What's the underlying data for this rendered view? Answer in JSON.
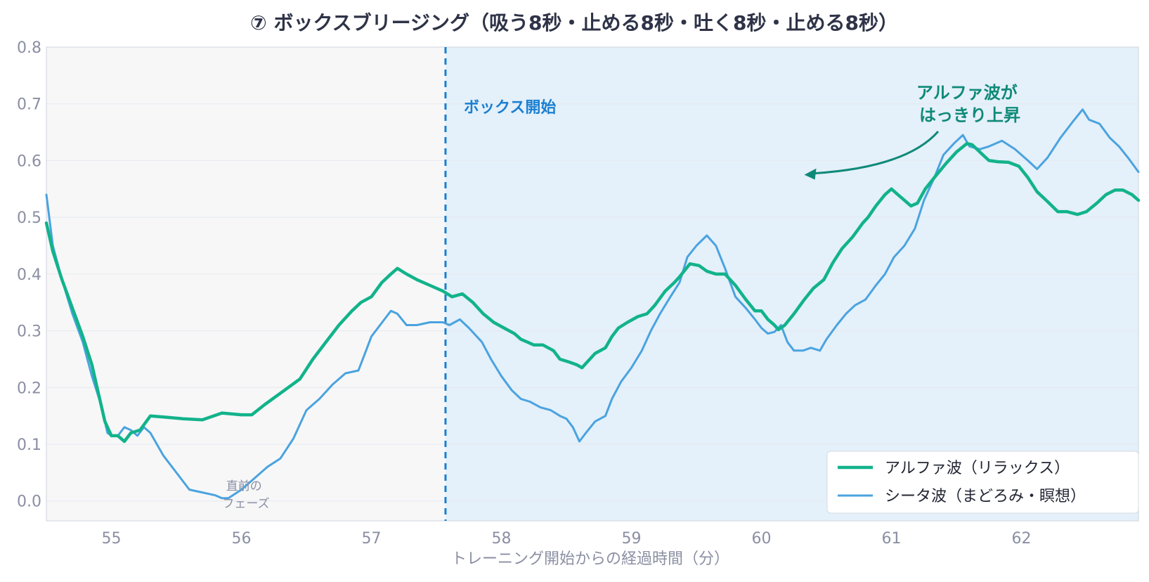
{
  "chart_data": {
    "type": "line",
    "title": "⑦ ボックスブリージング（吸う8秒・止める8秒・吐く8秒・止める8秒）",
    "xlabel": "トレーニング開始からの経過時間（分）",
    "ylabel": "",
    "xlim": [
      54.5,
      62.9
    ],
    "ylim": [
      -0.035,
      0.8
    ],
    "x_ticks": [
      "55",
      "56",
      "57",
      "58",
      "59",
      "60",
      "61",
      "62"
    ],
    "y_ticks": [
      "0.0",
      "0.1",
      "0.2",
      "0.3",
      "0.4",
      "0.5",
      "0.6",
      "0.7",
      "0.8"
    ],
    "grid": "horizontal",
    "legend_position": "bottom-right",
    "phases": [
      {
        "name": "previous",
        "x_start": 54.5,
        "x_end": 57.57,
        "color": "#f7f7f8",
        "label": "直前の\nフェーズ"
      },
      {
        "name": "box",
        "x_start": 57.57,
        "x_end": 62.9,
        "color": "#e4f0fa",
        "label": "ボックス開始"
      }
    ],
    "annotations": [
      {
        "text": "アルファ波が\nはっきり上昇",
        "color": "#0f8a78",
        "arrow_to": [
          60.33,
          0.575
        ]
      }
    ],
    "series": [
      {
        "name": "アルファ波（リラックス）",
        "color": "#12b38a",
        "width": 4.5,
        "points": [
          [
            54.5,
            0.49
          ],
          [
            54.55,
            0.44
          ],
          [
            54.62,
            0.39
          ],
          [
            54.7,
            0.34
          ],
          [
            54.78,
            0.29
          ],
          [
            54.85,
            0.24
          ],
          [
            54.9,
            0.19
          ],
          [
            54.95,
            0.14
          ],
          [
            55.0,
            0.115
          ],
          [
            55.05,
            0.115
          ],
          [
            55.1,
            0.105
          ],
          [
            55.15,
            0.12
          ],
          [
            55.22,
            0.125
          ],
          [
            55.3,
            0.15
          ],
          [
            55.4,
            0.148
          ],
          [
            55.55,
            0.145
          ],
          [
            55.7,
            0.143
          ],
          [
            55.85,
            0.155
          ],
          [
            56.0,
            0.152
          ],
          [
            56.08,
            0.152
          ],
          [
            56.18,
            0.17
          ],
          [
            56.3,
            0.19
          ],
          [
            56.45,
            0.215
          ],
          [
            56.55,
            0.25
          ],
          [
            56.65,
            0.28
          ],
          [
            56.75,
            0.31
          ],
          [
            56.85,
            0.335
          ],
          [
            56.92,
            0.35
          ],
          [
            57.0,
            0.36
          ],
          [
            57.08,
            0.385
          ],
          [
            57.15,
            0.4
          ],
          [
            57.2,
            0.41
          ],
          [
            57.27,
            0.4
          ],
          [
            57.35,
            0.39
          ],
          [
            57.45,
            0.38
          ],
          [
            57.55,
            0.37
          ],
          [
            57.62,
            0.36
          ],
          [
            57.7,
            0.365
          ],
          [
            57.78,
            0.35
          ],
          [
            57.86,
            0.33
          ],
          [
            57.94,
            0.315
          ],
          [
            58.02,
            0.305
          ],
          [
            58.1,
            0.295
          ],
          [
            58.15,
            0.285
          ],
          [
            58.2,
            0.28
          ],
          [
            58.25,
            0.275
          ],
          [
            58.32,
            0.275
          ],
          [
            58.4,
            0.265
          ],
          [
            58.45,
            0.25
          ],
          [
            58.52,
            0.245
          ],
          [
            58.58,
            0.24
          ],
          [
            58.62,
            0.235
          ],
          [
            58.66,
            0.245
          ],
          [
            58.72,
            0.26
          ],
          [
            58.8,
            0.27
          ],
          [
            58.85,
            0.29
          ],
          [
            58.9,
            0.305
          ],
          [
            58.97,
            0.315
          ],
          [
            59.05,
            0.325
          ],
          [
            59.12,
            0.33
          ],
          [
            59.18,
            0.345
          ],
          [
            59.26,
            0.37
          ],
          [
            59.33,
            0.385
          ],
          [
            59.37,
            0.395
          ],
          [
            59.45,
            0.418
          ],
          [
            59.52,
            0.415
          ],
          [
            59.58,
            0.405
          ],
          [
            59.65,
            0.4
          ],
          [
            59.72,
            0.4
          ],
          [
            59.8,
            0.38
          ],
          [
            59.88,
            0.355
          ],
          [
            59.95,
            0.335
          ],
          [
            60.0,
            0.335
          ],
          [
            60.05,
            0.32
          ],
          [
            60.1,
            0.31
          ],
          [
            60.13,
            0.302
          ],
          [
            60.18,
            0.31
          ],
          [
            60.25,
            0.33
          ],
          [
            60.33,
            0.355
          ],
          [
            60.4,
            0.375
          ],
          [
            60.48,
            0.39
          ],
          [
            60.55,
            0.42
          ],
          [
            60.62,
            0.445
          ],
          [
            60.7,
            0.465
          ],
          [
            60.78,
            0.49
          ],
          [
            60.82,
            0.5
          ],
          [
            60.88,
            0.52
          ],
          [
            60.95,
            0.54
          ],
          [
            61.0,
            0.55
          ],
          [
            61.05,
            0.54
          ],
          [
            61.1,
            0.53
          ],
          [
            61.15,
            0.52
          ],
          [
            61.2,
            0.525
          ],
          [
            61.26,
            0.55
          ],
          [
            61.33,
            0.57
          ],
          [
            61.42,
            0.595
          ],
          [
            61.5,
            0.615
          ],
          [
            61.58,
            0.63
          ],
          [
            61.62,
            0.628
          ],
          [
            61.68,
            0.615
          ],
          [
            61.75,
            0.6
          ],
          [
            61.82,
            0.598
          ],
          [
            61.9,
            0.597
          ],
          [
            61.98,
            0.59
          ],
          [
            62.05,
            0.57
          ],
          [
            62.12,
            0.545
          ],
          [
            62.2,
            0.528
          ],
          [
            62.28,
            0.51
          ],
          [
            62.35,
            0.51
          ],
          [
            62.43,
            0.505
          ],
          [
            62.5,
            0.51
          ],
          [
            62.58,
            0.525
          ],
          [
            62.65,
            0.54
          ],
          [
            62.72,
            0.548
          ],
          [
            62.78,
            0.548
          ],
          [
            62.85,
            0.54
          ],
          [
            62.9,
            0.53
          ]
        ]
      },
      {
        "name": "シータ波（まどろみ・瞑想）",
        "color": "#4aa3df",
        "width": 3,
        "points": [
          [
            54.5,
            0.54
          ],
          [
            54.55,
            0.45
          ],
          [
            54.62,
            0.39
          ],
          [
            54.7,
            0.33
          ],
          [
            54.78,
            0.28
          ],
          [
            54.85,
            0.22
          ],
          [
            54.92,
            0.17
          ],
          [
            54.97,
            0.12
          ],
          [
            55.0,
            0.115
          ],
          [
            55.05,
            0.115
          ],
          [
            55.1,
            0.13
          ],
          [
            55.15,
            0.125
          ],
          [
            55.2,
            0.115
          ],
          [
            55.25,
            0.13
          ],
          [
            55.3,
            0.12
          ],
          [
            55.4,
            0.08
          ],
          [
            55.5,
            0.05
          ],
          [
            55.6,
            0.02
          ],
          [
            55.7,
            0.015
          ],
          [
            55.8,
            0.01
          ],
          [
            55.85,
            0.005
          ],
          [
            55.9,
            0.005
          ],
          [
            56.0,
            0.02
          ],
          [
            56.1,
            0.04
          ],
          [
            56.2,
            0.06
          ],
          [
            56.3,
            0.075
          ],
          [
            56.4,
            0.11
          ],
          [
            56.5,
            0.16
          ],
          [
            56.6,
            0.18
          ],
          [
            56.7,
            0.205
          ],
          [
            56.8,
            0.225
          ],
          [
            56.9,
            0.23
          ],
          [
            56.95,
            0.26
          ],
          [
            57.0,
            0.29
          ],
          [
            57.1,
            0.32
          ],
          [
            57.15,
            0.335
          ],
          [
            57.2,
            0.33
          ],
          [
            57.27,
            0.31
          ],
          [
            57.35,
            0.31
          ],
          [
            57.45,
            0.315
          ],
          [
            57.55,
            0.315
          ],
          [
            57.6,
            0.31
          ],
          [
            57.68,
            0.32
          ],
          [
            57.75,
            0.305
          ],
          [
            57.85,
            0.28
          ],
          [
            57.92,
            0.25
          ],
          [
            58.0,
            0.22
          ],
          [
            58.08,
            0.195
          ],
          [
            58.15,
            0.18
          ],
          [
            58.22,
            0.175
          ],
          [
            58.3,
            0.165
          ],
          [
            58.38,
            0.16
          ],
          [
            58.45,
            0.15
          ],
          [
            58.5,
            0.145
          ],
          [
            58.55,
            0.13
          ],
          [
            58.6,
            0.105
          ],
          [
            58.65,
            0.12
          ],
          [
            58.72,
            0.14
          ],
          [
            58.8,
            0.15
          ],
          [
            58.85,
            0.18
          ],
          [
            58.92,
            0.21
          ],
          [
            59.0,
            0.235
          ],
          [
            59.08,
            0.265
          ],
          [
            59.15,
            0.3
          ],
          [
            59.22,
            0.33
          ],
          [
            59.3,
            0.36
          ],
          [
            59.37,
            0.385
          ],
          [
            59.43,
            0.43
          ],
          [
            59.5,
            0.45
          ],
          [
            59.58,
            0.468
          ],
          [
            59.65,
            0.45
          ],
          [
            59.72,
            0.41
          ],
          [
            59.8,
            0.36
          ],
          [
            59.88,
            0.34
          ],
          [
            59.95,
            0.32
          ],
          [
            60.0,
            0.305
          ],
          [
            60.05,
            0.295
          ],
          [
            60.1,
            0.298
          ],
          [
            60.15,
            0.31
          ],
          [
            60.2,
            0.28
          ],
          [
            60.25,
            0.265
          ],
          [
            60.32,
            0.265
          ],
          [
            60.38,
            0.27
          ],
          [
            60.45,
            0.265
          ],
          [
            60.5,
            0.285
          ],
          [
            60.58,
            0.31
          ],
          [
            60.65,
            0.33
          ],
          [
            60.72,
            0.345
          ],
          [
            60.8,
            0.355
          ],
          [
            60.88,
            0.38
          ],
          [
            60.95,
            0.4
          ],
          [
            61.02,
            0.43
          ],
          [
            61.1,
            0.45
          ],
          [
            61.18,
            0.48
          ],
          [
            61.25,
            0.53
          ],
          [
            61.33,
            0.57
          ],
          [
            61.4,
            0.61
          ],
          [
            61.48,
            0.63
          ],
          [
            61.55,
            0.645
          ],
          [
            61.6,
            0.625
          ],
          [
            61.68,
            0.62
          ],
          [
            61.75,
            0.625
          ],
          [
            61.85,
            0.635
          ],
          [
            61.95,
            0.62
          ],
          [
            62.05,
            0.6
          ],
          [
            62.12,
            0.585
          ],
          [
            62.2,
            0.605
          ],
          [
            62.3,
            0.64
          ],
          [
            62.4,
            0.67
          ],
          [
            62.47,
            0.69
          ],
          [
            62.52,
            0.672
          ],
          [
            62.6,
            0.665
          ],
          [
            62.68,
            0.64
          ],
          [
            62.75,
            0.625
          ],
          [
            62.82,
            0.605
          ],
          [
            62.9,
            0.58
          ]
        ]
      }
    ]
  }
}
